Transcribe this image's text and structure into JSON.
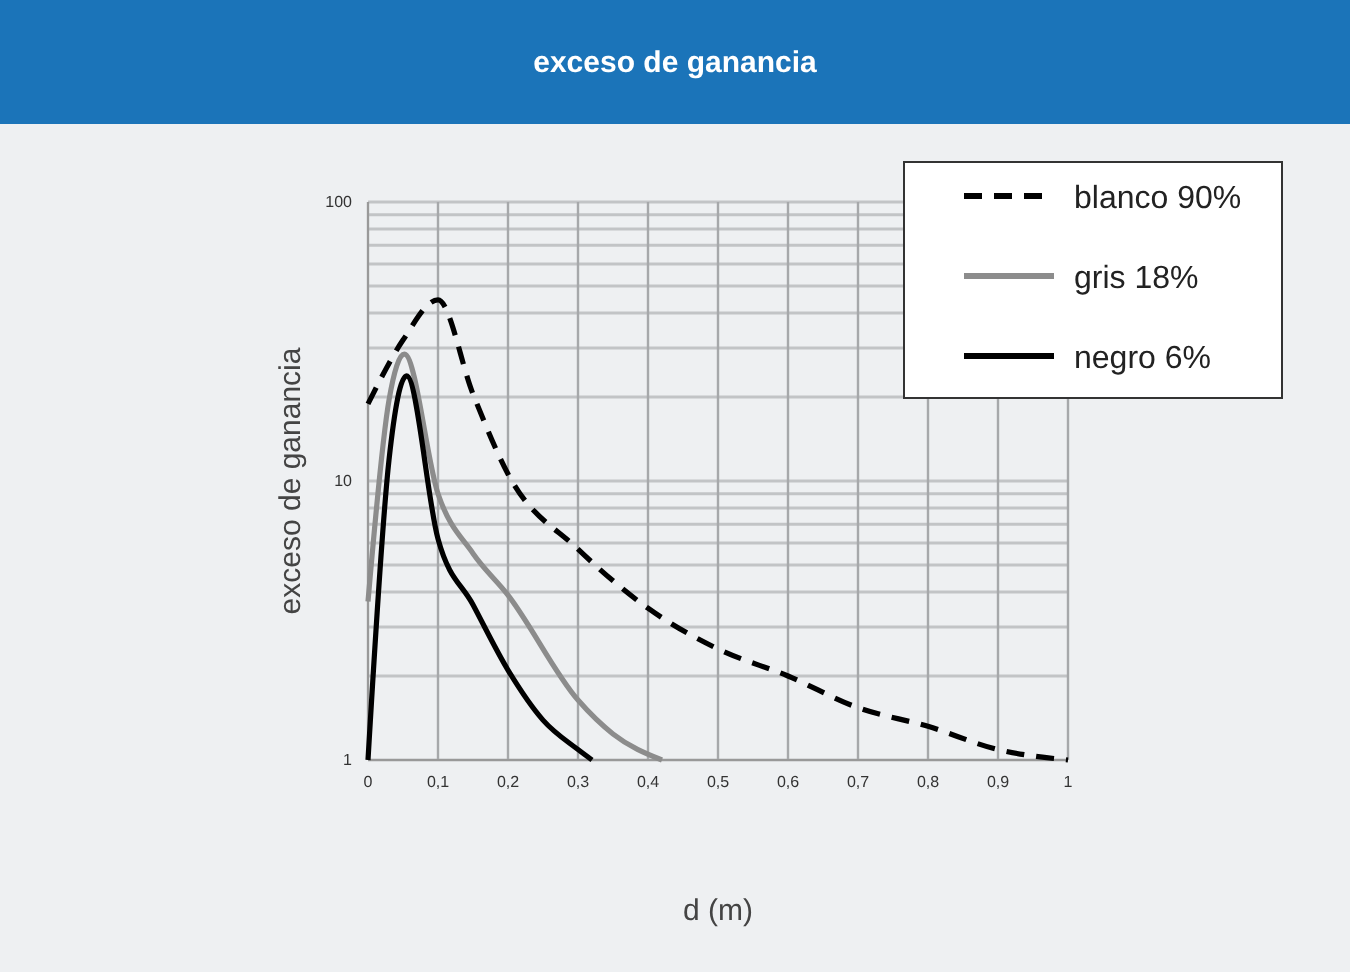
{
  "chart_data": {
    "type": "line",
    "title": "exceso de ganancia",
    "xlabel": "d (m)",
    "ylabel": "exceso de ganancia",
    "log": "y",
    "grid": true,
    "legend": "top right",
    "line_style": "solid",
    "marker": "none",
    "xlim": [
      0,
      1
    ],
    "xticks": [
      0,
      {
        "value": 0.1,
        "label": "0,1"
      },
      {
        "value": 0.2,
        "label": "0,2"
      },
      {
        "value": 0.3,
        "label": "0,3"
      },
      {
        "value": 0.4,
        "label": "0,4"
      },
      {
        "value": 0.5,
        "label": "0,5"
      },
      {
        "value": 0.6,
        "label": "0,6"
      },
      {
        "value": 0.7,
        "label": "0,7"
      },
      {
        "value": 0.8,
        "label": "0,8"
      },
      {
        "value": 0.9,
        "label": "0,9"
      },
      1
    ],
    "ylim": [
      1,
      100
    ],
    "yticks": [
      1,
      {
        "value": 2,
        "label": null
      },
      {
        "value": 3,
        "label": null
      },
      {
        "value": 4,
        "label": null
      },
      {
        "value": 5,
        "label": null
      },
      {
        "value": 6,
        "label": null
      },
      {
        "value": 7,
        "label": null
      },
      {
        "value": 8,
        "label": null
      },
      {
        "value": 9,
        "label": null
      },
      10,
      {
        "value": 20,
        "label": null
      },
      {
        "value": 30,
        "label": null
      },
      {
        "value": 40,
        "label": null
      },
      {
        "value": 50,
        "label": null
      },
      {
        "value": 60,
        "label": null
      },
      {
        "value": 70,
        "label": null
      },
      {
        "value": 80,
        "label": null
      },
      {
        "value": 90,
        "label": null
      },
      100
    ],
    "series": [
      {
        "name": "blanco 90%",
        "color": "#000000",
        "line_style": "dashed",
        "x": [
          0,
          0.05,
          0.1,
          0.15,
          0.2,
          0.3,
          0.4,
          0.5,
          0.6,
          0.7,
          0.8,
          0.9,
          1
        ],
        "values": [
          18.9,
          32,
          44.6,
          20.5,
          10.6,
          5.7,
          3.5,
          2.5,
          2.0,
          1.54,
          1.32,
          1.09,
          1.0
        ]
      },
      {
        "name": "gris 18%",
        "color": "#8c8c8c",
        "x": [
          0,
          0.03,
          0.052,
          0.1,
          0.15,
          0.2,
          0.3,
          0.35,
          0.42
        ],
        "values": [
          3.7,
          19.5,
          28.5,
          9.0,
          5.5,
          3.9,
          1.64,
          1.24,
          1.0
        ]
      },
      {
        "name": "negro 6%",
        "color": "#000000",
        "x": [
          0,
          0.03,
          0.055,
          0.1,
          0.15,
          0.2,
          0.25,
          0.3,
          0.32
        ],
        "values": [
          1.0,
          11.9,
          23.8,
          6.2,
          3.6,
          2.1,
          1.39,
          1.09,
          1.0
        ]
      }
    ]
  }
}
